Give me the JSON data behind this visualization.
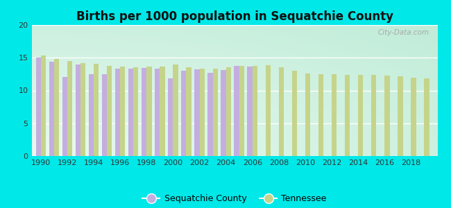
{
  "title": "Births per 1000 population in Sequatchie County",
  "sequatchie_years": [
    1990,
    1991,
    1992,
    1993,
    1994,
    1995,
    1996,
    1997,
    1998,
    1999,
    2000,
    2001,
    2002,
    2003,
    2004,
    2005,
    2006
  ],
  "sequatchie_values": [
    15.0,
    14.4,
    12.1,
    14.0,
    12.5,
    12.5,
    13.3,
    13.3,
    13.4,
    13.3,
    11.9,
    13.0,
    13.2,
    12.7,
    13.1,
    13.8,
    13.7
  ],
  "tennessee_years": [
    1990,
    1991,
    1992,
    1993,
    1994,
    1995,
    1996,
    1997,
    1998,
    1999,
    2000,
    2001,
    2002,
    2003,
    2004,
    2005,
    2006,
    2007,
    2008,
    2009,
    2010,
    2011,
    2012,
    2013,
    2014,
    2015,
    2016,
    2017,
    2018,
    2019
  ],
  "tennessee_values": [
    15.3,
    14.8,
    14.5,
    14.2,
    14.1,
    13.8,
    13.6,
    13.5,
    13.6,
    13.7,
    14.0,
    13.5,
    13.3,
    13.3,
    13.5,
    13.8,
    13.8,
    13.9,
    13.5,
    13.0,
    12.6,
    12.5,
    12.5,
    12.4,
    12.4,
    12.4,
    12.3,
    12.2,
    12.0,
    11.9
  ],
  "sequatchie_color": "#c4aee0",
  "tennessee_color": "#c5d48a",
  "outer_background": "#00e8e8",
  "ylim": [
    0,
    20
  ],
  "yticks": [
    0,
    5,
    10,
    15,
    20
  ],
  "xtick_labels": [
    1990,
    1992,
    1994,
    1996,
    1998,
    2000,
    2002,
    2004,
    2006,
    2008,
    2010,
    2012,
    2014,
    2016,
    2018
  ],
  "bar_width": 0.38,
  "watermark": "City-Data.com",
  "legend_sequatchie": "Sequatchie County",
  "legend_tennessee": "Tennessee",
  "xmin": 1989.3,
  "xmax": 2020.0,
  "bg_color_top_left": "#e8faf0",
  "bg_color_bottom_right": "#c8ede0"
}
